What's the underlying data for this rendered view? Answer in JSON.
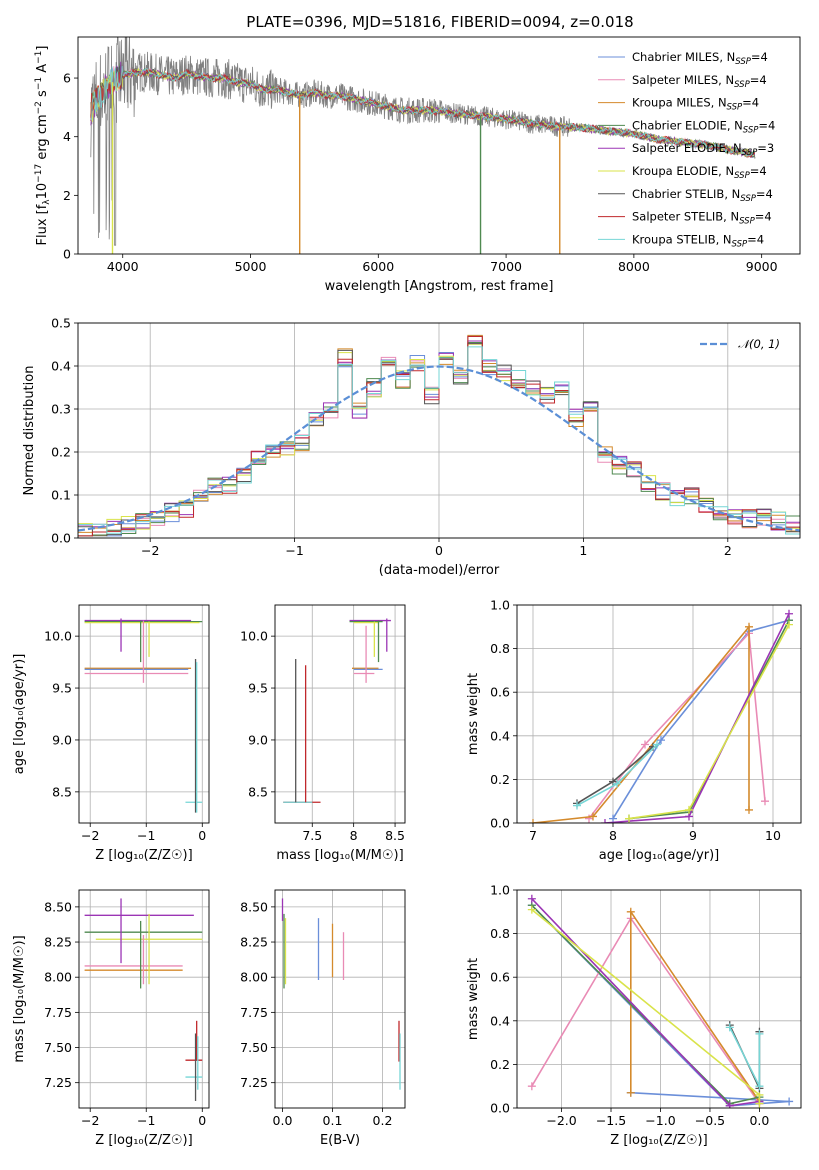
{
  "title": "PLATE=0396, MJD=51816, FIBERID=0094, z=0.018",
  "colors": {
    "Chabrier MILES": "#6b8fd9",
    "Salpeter MILES": "#e98bb5",
    "Kroupa MILES": "#d48a2c",
    "Chabrier ELODIE": "#4f8a50",
    "Salpeter ELODIE": "#9b35b5",
    "Kroupa ELODIE": "#d9e34a",
    "Chabrier STELIB": "#555555",
    "Salpeter STELIB": "#c0282c",
    "Kroupa STELIB": "#76d6d6",
    "data": "#808080",
    "gauss": "#5b8fd6"
  },
  "chart_data": [
    {
      "id": "spectrum",
      "type": "line",
      "xlabel": "wavelength [Angstrom, rest frame]",
      "ylabel_parts": [
        "Flux [f",
        "λ",
        "10",
        "−17",
        " erg cm",
        "−2",
        " s",
        "−1",
        " A",
        "−1",
        "]"
      ],
      "xlim": [
        3650,
        9300
      ],
      "ylim": [
        0,
        7.4
      ],
      "xticks": [
        4000,
        5000,
        6000,
        7000,
        8000,
        9000
      ],
      "yticks": [
        0,
        2,
        4,
        6
      ],
      "grid": false,
      "legend_position": "top-right",
      "continuum": {
        "x": [
          3750,
          3800,
          3900,
          4000,
          4100,
          4200,
          4300,
          4400,
          4500,
          4600,
          4700,
          4800,
          4900,
          5000,
          5100,
          5200,
          5300,
          5400,
          5500,
          5600,
          5700,
          5800,
          5900,
          6000,
          6200,
          6400,
          6600,
          6800,
          7000,
          7200,
          7400,
          7600,
          7800,
          8000,
          8200,
          8400,
          8600,
          8800,
          8950
        ],
        "y": [
          4.9,
          5.3,
          5.8,
          6.1,
          6.2,
          6.2,
          6.1,
          6.0,
          6.15,
          6.05,
          6.0,
          6.0,
          5.85,
          5.8,
          5.6,
          5.6,
          5.5,
          5.4,
          5.5,
          5.4,
          5.4,
          5.3,
          5.2,
          5.1,
          4.9,
          4.9,
          4.8,
          4.7,
          4.6,
          4.45,
          4.35,
          4.3,
          4.2,
          4.1,
          3.9,
          3.8,
          3.7,
          3.5,
          3.4
        ]
      },
      "series": [
        {
          "name": "Chabrier MILES",
          "n_ssp": "4"
        },
        {
          "name": "Salpeter MILES",
          "n_ssp": "4"
        },
        {
          "name": "Kroupa MILES",
          "n_ssp": "4"
        },
        {
          "name": "Chabrier ELODIE",
          "n_ssp": "4"
        },
        {
          "name": "Salpeter ELODIE",
          "n_ssp": "3"
        },
        {
          "name": "Kroupa ELODIE",
          "n_ssp": "4"
        },
        {
          "name": "Chabrier STELIB",
          "n_ssp": "4"
        },
        {
          "name": "Salpeter STELIB",
          "n_ssp": "4"
        },
        {
          "name": "Kroupa STELIB",
          "n_ssp": "4"
        }
      ],
      "drops": [
        {
          "x": 3920,
          "color": "Kroupa ELODIE"
        },
        {
          "x": 5385,
          "color": "Kroupa MILES"
        },
        {
          "x": 6800,
          "color": "Chabrier ELODIE"
        },
        {
          "x": 7420,
          "color": "Kroupa MILES"
        }
      ]
    },
    {
      "id": "residuals",
      "type": "line",
      "xlabel": "(data-model)/error",
      "ylabel": "Normed distribution",
      "xlim": [
        -2.5,
        2.5
      ],
      "ylim": [
        0,
        0.5
      ],
      "xticks": [
        -2,
        -1,
        0,
        1,
        2
      ],
      "yticks": [
        0.0,
        0.1,
        0.2,
        0.3,
        0.4,
        0.5
      ],
      "grid": true,
      "legend": "𝒩(0, 1)",
      "legend_position": "top-right",
      "bin_edges": [
        -2.5,
        -2.4,
        -2.3,
        -2.2,
        -2.1,
        -2.0,
        -1.9,
        -1.8,
        -1.7,
        -1.6,
        -1.5,
        -1.4,
        -1.3,
        -1.2,
        -1.1,
        -1.0,
        -0.9,
        -0.8,
        -0.7,
        -0.6,
        -0.5,
        -0.4,
        -0.3,
        -0.2,
        -0.1,
        0.0,
        0.1,
        0.2,
        0.3,
        0.4,
        0.5,
        0.6,
        0.7,
        0.8,
        0.9,
        1.0,
        1.1,
        1.2,
        1.3,
        1.4,
        1.5,
        1.6,
        1.7,
        1.8,
        1.9,
        2.0,
        2.1,
        2.2,
        2.3,
        2.4,
        2.5
      ],
      "base_counts": [
        0.015,
        0.02,
        0.025,
        0.03,
        0.04,
        0.05,
        0.06,
        0.07,
        0.09,
        0.12,
        0.12,
        0.15,
        0.19,
        0.2,
        0.21,
        0.22,
        0.27,
        0.3,
        0.42,
        0.3,
        0.35,
        0.42,
        0.37,
        0.41,
        0.33,
        0.42,
        0.38,
        0.46,
        0.4,
        0.38,
        0.37,
        0.35,
        0.33,
        0.35,
        0.28,
        0.31,
        0.19,
        0.17,
        0.16,
        0.13,
        0.11,
        0.09,
        0.1,
        0.08,
        0.06,
        0.05,
        0.045,
        0.05,
        0.04,
        0.03
      ]
    },
    {
      "id": "age-vs-Z",
      "type": "scatter",
      "xlabel": "Z [log₁₀(Z/Z☉)]",
      "ylabel": "age  [log₁₀(age/yr)]",
      "xlim": [
        -2.2,
        0.12
      ],
      "ylim": [
        8.2,
        10.3
      ],
      "xticks": [
        -2,
        -1,
        0
      ],
      "yticks": [
        8.5,
        9.0,
        9.5,
        10.0
      ],
      "grid": true,
      "hbars": [
        {
          "y": 10.15,
          "x0": -2.1,
          "x1": -0.2,
          "color": "Salpeter ELODIE"
        },
        {
          "y": 10.14,
          "x0": -2.1,
          "x1": 0.0,
          "color": "Chabrier ELODIE"
        },
        {
          "y": 10.13,
          "x0": -2.1,
          "x1": -0.05,
          "color": "Kroupa ELODIE"
        },
        {
          "y": 9.69,
          "x0": -2.1,
          "x1": -0.2,
          "color": "Kroupa MILES"
        },
        {
          "y": 9.68,
          "x0": -2.1,
          "x1": -0.25,
          "color": "Chabrier MILES"
        },
        {
          "y": 9.64,
          "x0": -2.1,
          "x1": -0.25,
          "color": "Salpeter MILES"
        },
        {
          "y": 8.4,
          "x0": -0.3,
          "x1": 0.0,
          "color": "Kroupa STELIB"
        }
      ],
      "vbars": [
        {
          "x": -1.45,
          "y0": 9.85,
          "y1": 10.17,
          "color": "Salpeter ELODIE"
        },
        {
          "x": -1.1,
          "y0": 9.75,
          "y1": 10.15,
          "color": "Chabrier ELODIE"
        },
        {
          "x": -0.95,
          "y0": 9.8,
          "y1": 10.14,
          "color": "Kroupa ELODIE"
        },
        {
          "x": -1.05,
          "y0": 9.55,
          "y1": 10.15,
          "color": "Salpeter MILES"
        },
        {
          "x": -0.12,
          "y0": 8.3,
          "y1": 9.78,
          "color": "Chabrier STELIB"
        },
        {
          "x": -0.1,
          "y0": 8.3,
          "y1": 9.75,
          "color": "Kroupa STELIB"
        }
      ]
    },
    {
      "id": "age-vs-mass",
      "type": "scatter",
      "xlabel": "mass [log₁₀(M/M☉)]",
      "xlim": [
        7.05,
        8.62
      ],
      "ylim": [
        8.2,
        10.3
      ],
      "xticks": [
        7.5,
        8.0,
        8.5
      ],
      "yticks": [
        8.5,
        9.0,
        9.5,
        10.0
      ],
      "grid": true,
      "hbars": [
        {
          "y": 10.15,
          "x0": 7.95,
          "x1": 8.45,
          "color": "Salpeter ELODIE"
        },
        {
          "y": 10.14,
          "x0": 7.95,
          "x1": 8.35,
          "color": "Chabrier ELODIE"
        },
        {
          "y": 10.13,
          "x0": 8.0,
          "x1": 8.3,
          "color": "Kroupa ELODIE"
        },
        {
          "y": 9.69,
          "x0": 7.98,
          "x1": 8.3,
          "color": "Kroupa MILES"
        },
        {
          "y": 9.68,
          "x0": 8.0,
          "x1": 8.35,
          "color": "Chabrier MILES"
        },
        {
          "y": 9.64,
          "x0": 8.0,
          "x1": 8.25,
          "color": "Salpeter MILES"
        },
        {
          "y": 8.4,
          "x0": 7.15,
          "x1": 7.6,
          "color": "Salpeter STELIB"
        },
        {
          "y": 8.4,
          "x0": 7.15,
          "x1": 7.5,
          "color": "Kroupa STELIB"
        }
      ],
      "vbars": [
        {
          "x": 8.4,
          "y0": 9.85,
          "y1": 10.17,
          "color": "Salpeter ELODIE"
        },
        {
          "x": 8.3,
          "y0": 9.75,
          "y1": 10.15,
          "color": "Chabrier ELODIE"
        },
        {
          "x": 8.25,
          "y0": 9.8,
          "y1": 10.14,
          "color": "Kroupa ELODIE"
        },
        {
          "x": 8.15,
          "y0": 9.55,
          "y1": 10.1,
          "color": "Salpeter MILES"
        },
        {
          "x": 7.3,
          "y0": 8.4,
          "y1": 9.78,
          "color": "Chabrier STELIB"
        },
        {
          "x": 7.42,
          "y0": 8.4,
          "y1": 9.72,
          "color": "Salpeter STELIB"
        }
      ]
    },
    {
      "id": "massweight-vs-age",
      "type": "line",
      "xlabel": "age  [log₁₀(age/yr)]",
      "ylabel": "mass weight",
      "xlim": [
        6.8,
        10.35
      ],
      "ylim": [
        0,
        1.0
      ],
      "xticks": [
        7,
        8,
        9,
        10
      ],
      "yticks": [
        0.0,
        0.2,
        0.4,
        0.6,
        0.8,
        1.0
      ],
      "grid": true,
      "series": [
        {
          "color": "Chabrier MILES",
          "x": [
            8.0,
            8.6,
            9.7,
            10.2
          ],
          "y": [
            0.02,
            0.38,
            0.88,
            0.93
          ]
        },
        {
          "color": "Salpeter MILES",
          "x": [
            7.7,
            8.4,
            9.7,
            9.9
          ],
          "y": [
            0.02,
            0.36,
            0.87,
            0.1
          ]
        },
        {
          "color": "Kroupa MILES",
          "x": [
            7.0,
            7.75,
            9.7,
            9.7
          ],
          "y": [
            0.0,
            0.03,
            0.9,
            0.06
          ]
        },
        {
          "color": "Chabrier ELODIE",
          "x": [
            8.2,
            8.95,
            10.2
          ],
          "y": [
            0.02,
            0.05,
            0.93
          ]
        },
        {
          "color": "Salpeter ELODIE",
          "x": [
            7.9,
            8.95,
            10.2
          ],
          "y": [
            0.0,
            0.03,
            0.96
          ]
        },
        {
          "color": "Kroupa ELODIE",
          "x": [
            8.2,
            8.95,
            10.2
          ],
          "y": [
            0.02,
            0.06,
            0.91
          ]
        },
        {
          "color": "Chabrier STELIB",
          "x": [
            7.55,
            8.0,
            8.5
          ],
          "y": [
            0.09,
            0.19,
            0.35
          ]
        },
        {
          "color": "Kroupa STELIB",
          "x": [
            7.55,
            8.05,
            8.55
          ],
          "y": [
            0.08,
            0.18,
            0.36
          ]
        }
      ]
    },
    {
      "id": "mass-vs-Z",
      "type": "scatter",
      "xlabel": "Z [log₁₀(Z/Z☉)]",
      "ylabel": "mass [log₁₀(M/M☉)]",
      "xlim": [
        -2.2,
        0.12
      ],
      "ylim": [
        7.07,
        8.62
      ],
      "xticks": [
        -2,
        -1,
        0
      ],
      "yticks": [
        7.25,
        7.5,
        7.75,
        8.0,
        8.25,
        8.5
      ],
      "grid": true,
      "hbars": [
        {
          "y": 8.44,
          "x0": -2.1,
          "x1": -0.15,
          "color": "Salpeter ELODIE"
        },
        {
          "y": 8.32,
          "x0": -2.1,
          "x1": 0.0,
          "color": "Chabrier ELODIE"
        },
        {
          "y": 8.27,
          "x0": -1.9,
          "x1": 0.0,
          "color": "Kroupa ELODIE"
        },
        {
          "y": 8.08,
          "x0": -2.1,
          "x1": -0.35,
          "color": "Salpeter MILES"
        },
        {
          "y": 8.05,
          "x0": -2.1,
          "x1": -0.35,
          "color": "Kroupa MILES"
        },
        {
          "y": 7.41,
          "x0": -0.3,
          "x1": 0.0,
          "color": "Salpeter STELIB"
        },
        {
          "y": 7.29,
          "x0": -0.3,
          "x1": 0.0,
          "color": "Kroupa STELIB"
        }
      ],
      "vbars": [
        {
          "x": -1.45,
          "y0": 8.1,
          "y1": 8.56,
          "color": "Salpeter ELODIE"
        },
        {
          "x": -1.1,
          "y0": 7.92,
          "y1": 8.4,
          "color": "Chabrier ELODIE"
        },
        {
          "x": -0.95,
          "y0": 7.95,
          "y1": 8.45,
          "color": "Kroupa ELODIE"
        },
        {
          "x": -1.05,
          "y0": 7.95,
          "y1": 8.3,
          "color": "Salpeter MILES"
        },
        {
          "x": -0.12,
          "y0": 7.12,
          "y1": 7.6,
          "color": "Chabrier STELIB"
        },
        {
          "x": -0.1,
          "y0": 7.41,
          "y1": 7.69,
          "color": "Salpeter STELIB"
        },
        {
          "x": -0.08,
          "y0": 7.2,
          "y1": 7.58,
          "color": "Kroupa STELIB"
        }
      ]
    },
    {
      "id": "mass-vs-EBV",
      "type": "scatter",
      "xlabel": "E(B-V)",
      "xlim": [
        -0.015,
        0.245
      ],
      "ylim": [
        7.07,
        8.62
      ],
      "xticks": [
        0.0,
        0.1,
        0.2
      ],
      "yticks": [
        7.25,
        7.5,
        7.75,
        8.0,
        8.25,
        8.5
      ],
      "grid": true,
      "vbars": [
        {
          "x": 0.0,
          "y0": 8.4,
          "y1": 8.56,
          "color": "Salpeter ELODIE"
        },
        {
          "x": 0.003,
          "y0": 7.92,
          "y1": 8.45,
          "color": "Chabrier ELODIE"
        },
        {
          "x": 0.006,
          "y0": 7.95,
          "y1": 8.42,
          "color": "Kroupa ELODIE"
        },
        {
          "x": 0.072,
          "y0": 7.98,
          "y1": 8.42,
          "color": "Chabrier MILES"
        },
        {
          "x": 0.1,
          "y0": 8.0,
          "y1": 8.38,
          "color": "Kroupa MILES"
        },
        {
          "x": 0.122,
          "y0": 7.98,
          "y1": 8.32,
          "color": "Salpeter MILES"
        },
        {
          "x": 0.233,
          "y0": 7.4,
          "y1": 7.69,
          "color": "Salpeter STELIB"
        },
        {
          "x": 0.235,
          "y0": 7.2,
          "y1": 7.6,
          "color": "Kroupa STELIB"
        }
      ]
    },
    {
      "id": "massweight-vs-Z",
      "type": "line",
      "xlabel": "Z [log₁₀(Z/Z☉)]",
      "ylabel": "mass weight",
      "xlim": [
        -2.45,
        0.42
      ],
      "ylim": [
        0,
        1.0
      ],
      "xticks": [
        -2.0,
        -1.5,
        -1.0,
        -0.5,
        0.0
      ],
      "yticks": [
        0.0,
        0.2,
        0.4,
        0.6,
        0.8,
        1.0
      ],
      "grid": true,
      "series": [
        {
          "color": "Chabrier MILES",
          "x": [
            -1.3,
            0.3,
            -0.3,
            -2.3
          ],
          "y": [
            0.07,
            0.03,
            0.01,
            0.93
          ]
        },
        {
          "color": "Salpeter MILES",
          "x": [
            -2.3,
            -1.3,
            0.0
          ],
          "y": [
            0.1,
            0.87,
            0.02
          ]
        },
        {
          "color": "Kroupa MILES",
          "x": [
            -1.3,
            -1.3,
            0.0
          ],
          "y": [
            0.07,
            0.9,
            0.03
          ]
        },
        {
          "color": "Chabrier ELODIE",
          "x": [
            -2.3,
            -0.3,
            0.0
          ],
          "y": [
            0.93,
            0.02,
            0.05
          ]
        },
        {
          "color": "Salpeter ELODIE",
          "x": [
            -2.3,
            -0.3,
            0.0
          ],
          "y": [
            0.96,
            0.01,
            0.03
          ]
        },
        {
          "color": "Kroupa ELODIE",
          "x": [
            -2.3,
            0.0,
            0.0
          ],
          "y": [
            0.91,
            0.06,
            0.02
          ]
        },
        {
          "color": "Chabrier STELIB",
          "x": [
            -0.3,
            0.0,
            0.0
          ],
          "y": [
            0.38,
            0.09,
            0.35
          ]
        },
        {
          "color": "Kroupa STELIB",
          "x": [
            -0.3,
            0.0,
            0.0
          ],
          "y": [
            0.37,
            0.1,
            0.34
          ]
        }
      ]
    }
  ]
}
